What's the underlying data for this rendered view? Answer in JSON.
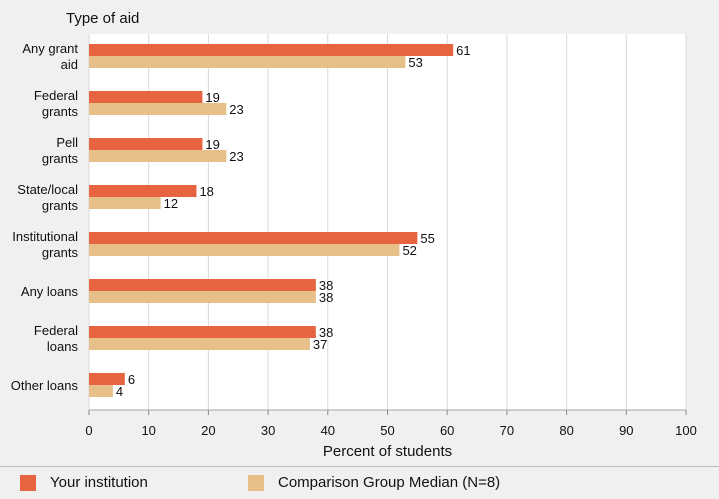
{
  "chart_data": {
    "type": "bar",
    "orientation": "horizontal",
    "title": "Type of aid",
    "xlabel": "Percent of students",
    "ylabel": "Type of aid",
    "xlim": [
      0,
      100
    ],
    "xticks": [
      "0",
      "10",
      "20",
      "30",
      "40",
      "50",
      "60",
      "70",
      "80",
      "90",
      "100"
    ],
    "categories": [
      [
        "Any grant",
        "aid"
      ],
      [
        "Federal",
        "grants"
      ],
      [
        "Pell",
        "grants"
      ],
      [
        "State/local",
        "grants"
      ],
      [
        "Institutional",
        "grants"
      ],
      [
        "Any loans"
      ],
      [
        "Federal",
        "loans"
      ],
      [
        "Other loans"
      ]
    ],
    "series": [
      {
        "name": "Your institution",
        "color": "#e66440",
        "values": [
          61,
          19,
          19,
          18,
          55,
          38,
          38,
          6
        ]
      },
      {
        "name": "Comparison Group Median (N=8)",
        "color": "#e6bf89",
        "values": [
          53,
          23,
          23,
          12,
          52,
          38,
          37,
          4
        ]
      }
    ],
    "grid": true,
    "legend_position": "bottom"
  },
  "legend": {
    "items": [
      "Your institution",
      "Comparison Group Median (N=8)"
    ]
  }
}
